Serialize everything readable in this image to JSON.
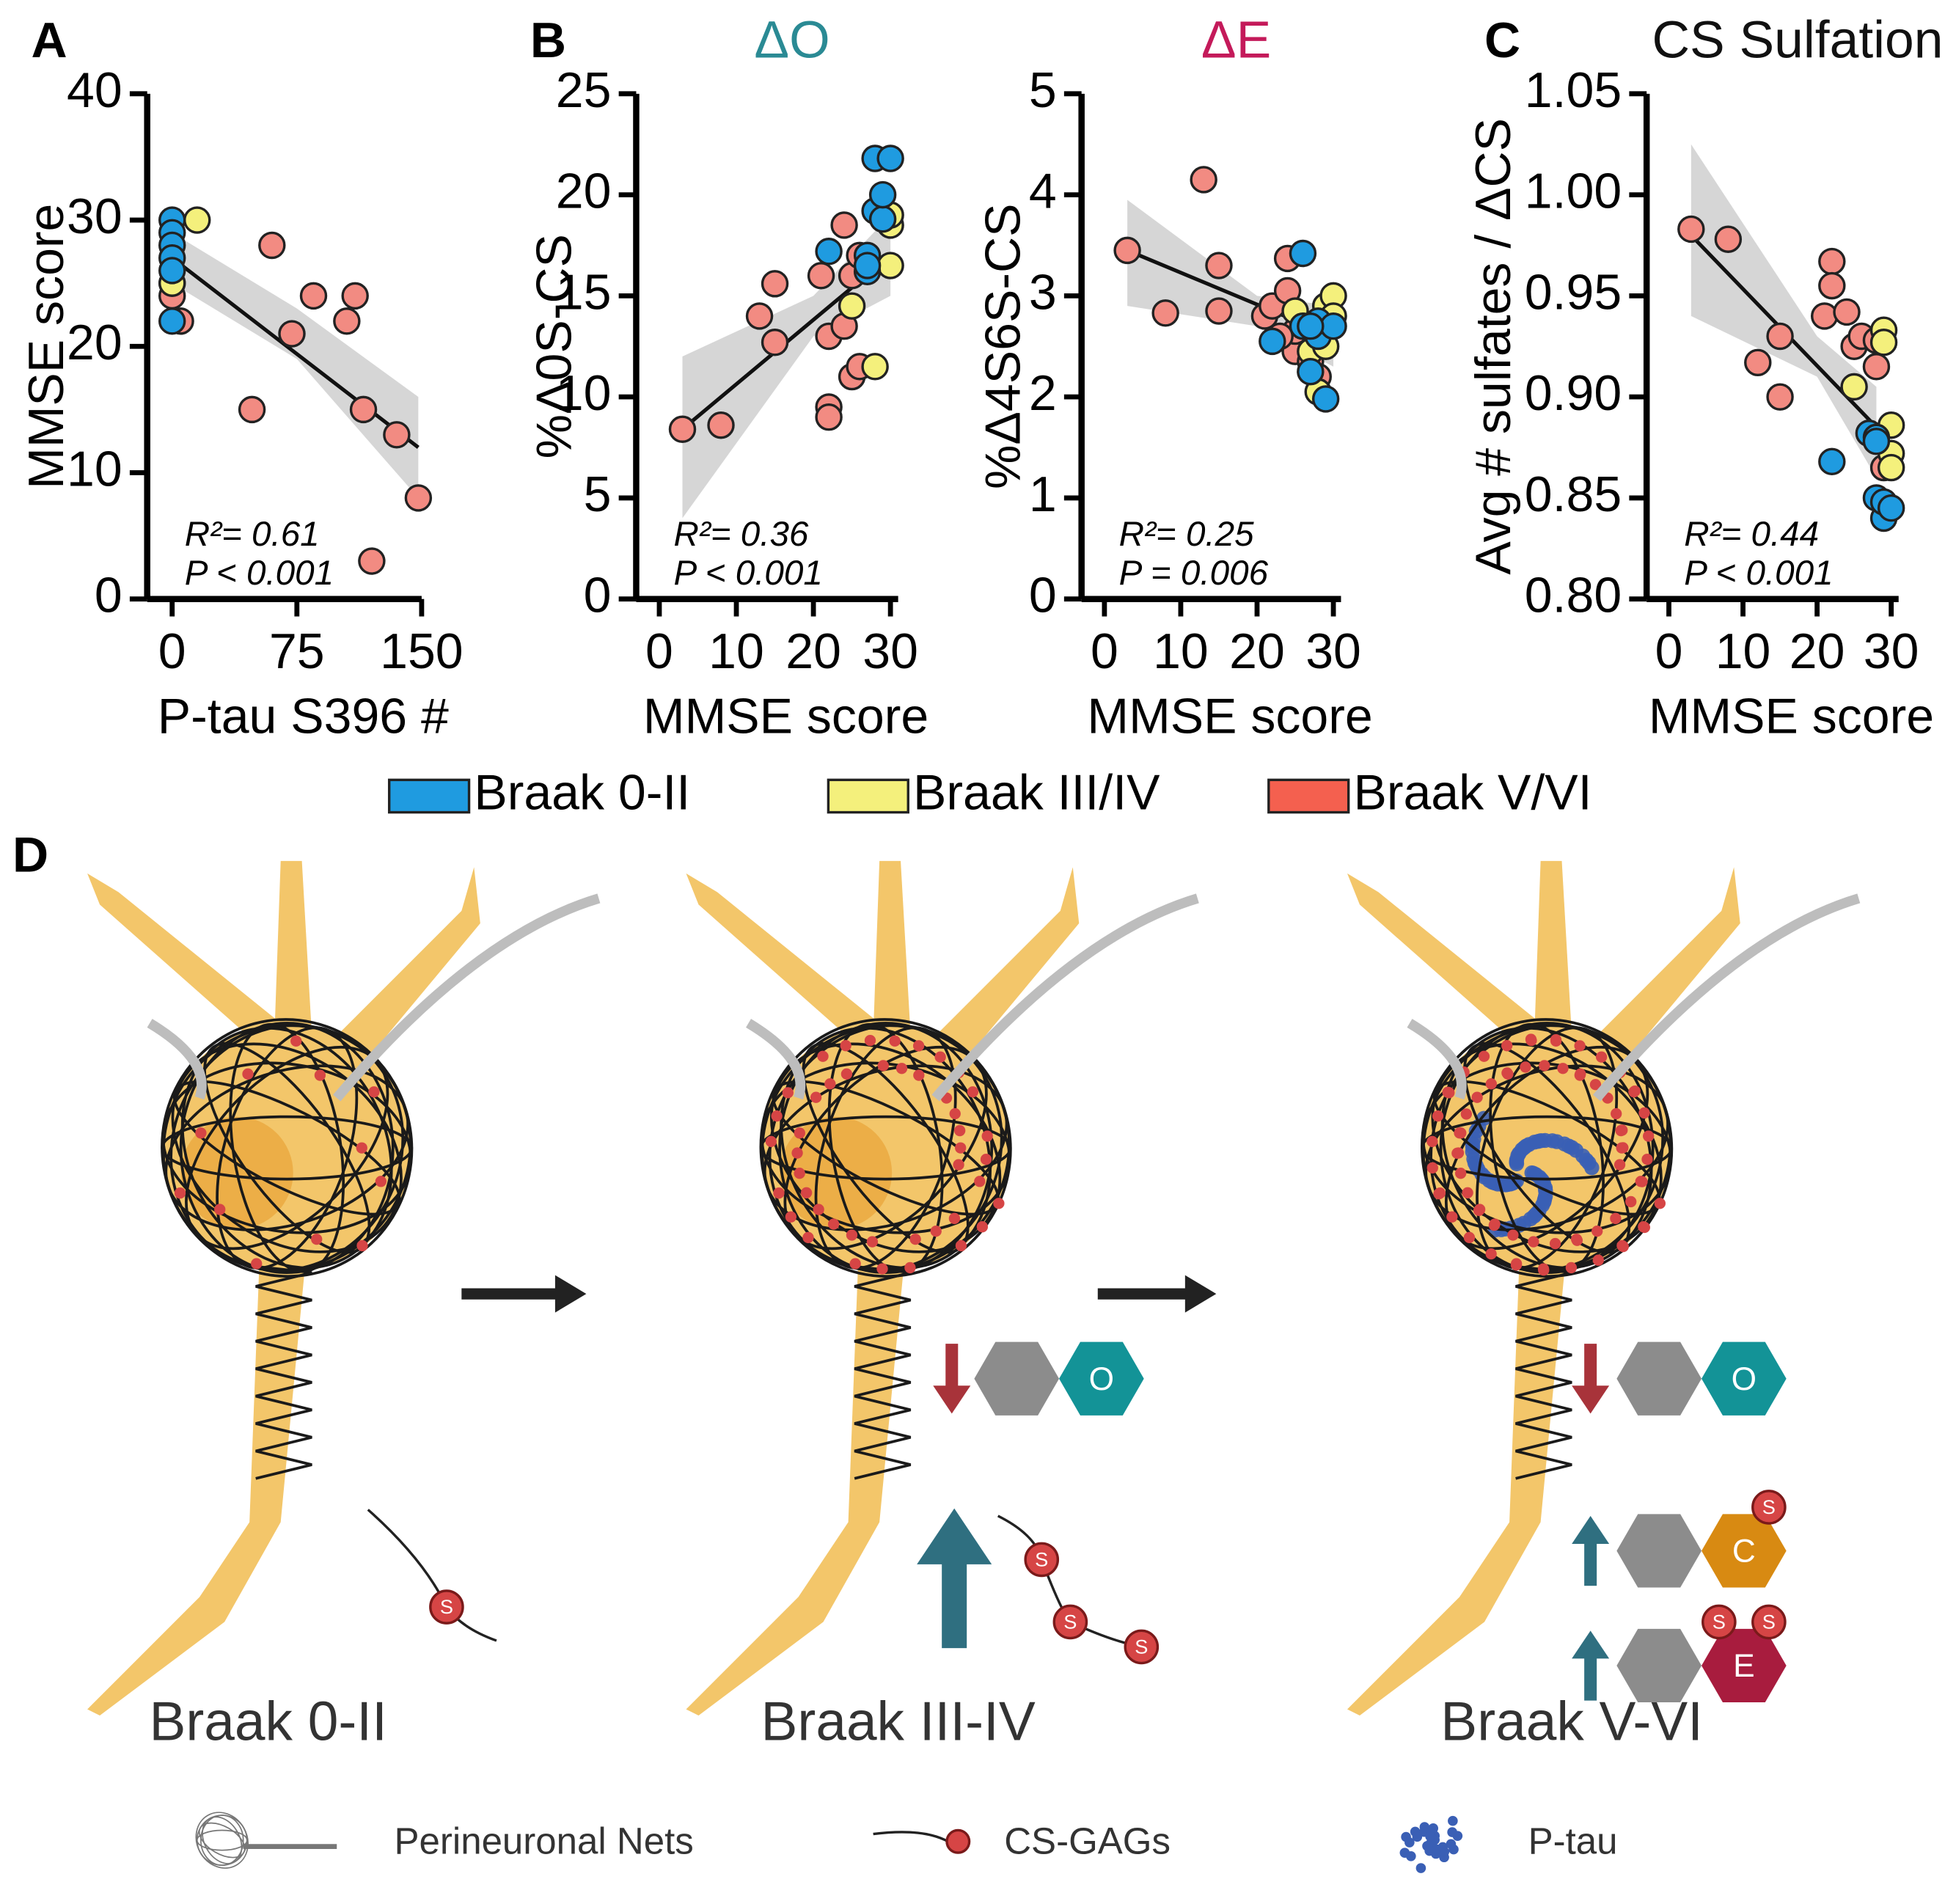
{
  "legend": [
    {
      "name": "Braak 0-II",
      "color": "#1f9be0"
    },
    {
      "name": "Braak III/IV",
      "color": "#f4f07c"
    },
    {
      "name": "Braak V/VI",
      "color": "#f4604f"
    }
  ],
  "chart_data": [
    {
      "type": "scatter",
      "panel_label": "A",
      "title": null,
      "xlabel": "P-tau S396 #",
      "ylabel": "MMSE score",
      "xlim": [
        -15,
        150
      ],
      "ylim": [
        0,
        40
      ],
      "xticks": [
        0,
        75,
        150
      ],
      "yticks": [
        0,
        10,
        20,
        30,
        40
      ],
      "series": [
        {
          "color": "#1f9be0",
          "x": [
            0,
            0,
            0,
            0,
            0,
            0
          ],
          "values": [
            30,
            29,
            28,
            27,
            26,
            22
          ]
        },
        {
          "color": "#f4f07c",
          "x": [
            15,
            0
          ],
          "values": [
            30,
            25
          ]
        },
        {
          "color": "#f28b82",
          "x": [
            0,
            0,
            5,
            60,
            85,
            110,
            105,
            72,
            48,
            115,
            135,
            148,
            120
          ],
          "values": [
            24,
            25,
            22,
            28,
            24,
            24,
            22,
            21,
            15,
            15,
            13,
            8,
            3
          ]
        }
      ],
      "fit": {
        "x": [
          0,
          148
        ],
        "y": [
          27,
          12
        ]
      },
      "band": {
        "x": [
          0,
          75,
          148
        ],
        "lower": [
          25,
          19,
          8
        ],
        "upper": [
          29,
          23,
          16
        ]
      },
      "annotations": [
        "R²= 0.61",
        "P < 0.001"
      ]
    },
    {
      "type": "scatter",
      "panel_label": "B",
      "title": "ΔO",
      "title_color": "#2a8a94",
      "xlabel": "MMSE score",
      "ylabel": "%Δ0S-CS",
      "xlim": [
        -3,
        31
      ],
      "ylim": [
        0,
        25
      ],
      "xticks": [
        0,
        10,
        20,
        30
      ],
      "yticks": [
        0,
        5,
        10,
        15,
        20,
        25
      ],
      "series": [
        {
          "color": "#1f9be0",
          "x": [
            22,
            27,
            27,
            28,
            28,
            30,
            29,
            27,
            29
          ],
          "values": [
            17.2,
            16.2,
            17,
            19.2,
            21.8,
            21.8,
            18.8,
            16.5,
            20
          ]
        },
        {
          "color": "#f4f07c",
          "x": [
            25,
            28,
            30,
            30,
            30
          ],
          "values": [
            14.5,
            11.5,
            18.5,
            16.5,
            19
          ]
        },
        {
          "color": "#f28b82",
          "x": [
            3,
            8,
            13,
            15,
            15,
            22,
            22,
            22,
            24,
            24,
            25,
            26,
            25,
            26,
            21
          ],
          "values": [
            8.4,
            8.6,
            14,
            15.6,
            12.7,
            13,
            9.5,
            9,
            13.5,
            18.5,
            11,
            11.5,
            16,
            17,
            16
          ]
        }
      ],
      "fit": {
        "x": [
          3,
          30
        ],
        "y": [
          8.4,
          17
        ]
      },
      "band": {
        "x": [
          3,
          20,
          30
        ],
        "lower": [
          4,
          13,
          15
        ],
        "upper": [
          12,
          15,
          19
        ]
      },
      "annotations": [
        "R²= 0.36",
        "P < 0.001"
      ]
    },
    {
      "type": "scatter",
      "panel_label": null,
      "title": "ΔE",
      "title_color": "#c41a5a",
      "xlabel": "MMSE score",
      "ylabel": "%Δ4S6S-CS",
      "xlim": [
        -3,
        31
      ],
      "ylim": [
        0,
        5
      ],
      "xticks": [
        0,
        10,
        20,
        30
      ],
      "yticks": [
        0,
        1,
        2,
        3,
        4,
        5
      ],
      "series": [
        {
          "color": "#1f9be0",
          "x": [
            22,
            26,
            26,
            27,
            28,
            28,
            29,
            30,
            27
          ],
          "values": [
            2.55,
            3.42,
            2.7,
            2.25,
            2.6,
            2.75,
            1.98,
            2.7,
            2.7
          ]
        },
        {
          "color": "#f4f07c",
          "x": [
            25,
            27,
            28,
            29,
            30,
            30,
            29
          ],
          "values": [
            2.85,
            2.45,
            2.05,
            2.9,
            3,
            2.8,
            2.5
          ]
        },
        {
          "color": "#f28b82",
          "x": [
            3,
            8,
            13,
            15,
            15,
            21,
            22,
            24,
            24,
            25,
            25,
            27,
            28,
            23
          ],
          "values": [
            3.45,
            2.83,
            4.15,
            3.3,
            2.85,
            2.8,
            2.9,
            3.37,
            3.05,
            2.45,
            2.65,
            2.35,
            2.2,
            2.6
          ]
        }
      ],
      "fit": {
        "x": [
          3,
          30
        ],
        "y": [
          3.45,
          2.6
        ]
      },
      "band": {
        "x": [
          3,
          20,
          30
        ],
        "lower": [
          2.9,
          2.7,
          2.3
        ],
        "upper": [
          3.95,
          3.0,
          2.9
        ]
      },
      "annotations": [
        "R²= 0.25",
        "P = 0.006"
      ]
    },
    {
      "type": "scatter",
      "panel_label": "C",
      "title": "CS Sulfation",
      "title_color": "#111111",
      "xlabel": "MMSE score",
      "ylabel": "Avg # sulfates / ΔCS",
      "xlim": [
        -3,
        31
      ],
      "ylim": [
        0.8,
        1.05
      ],
      "xticks": [
        0,
        10,
        20,
        30
      ],
      "yticks": [
        {
          "value": 0.8,
          "label": "0.80"
        },
        0.85,
        {
          "value": 0.9,
          "label": "0.90"
        },
        0.95,
        {
          "value": 1.0,
          "label": "1.00"
        },
        1.05
      ],
      "series": [
        {
          "color": "#1f9be0",
          "x": [
            22,
            27,
            28,
            28,
            28,
            29,
            29,
            30
          ],
          "values": [
            0.868,
            0.882,
            0.88,
            0.878,
            0.85,
            0.84,
            0.848,
            0.845
          ]
        },
        {
          "color": "#f4f07c",
          "x": [
            25,
            29,
            29,
            30,
            30,
            30
          ],
          "values": [
            0.905,
            0.933,
            0.927,
            0.886,
            0.872,
            0.865
          ]
        },
        {
          "color": "#f28b82",
          "x": [
            3,
            8,
            12,
            15,
            15,
            22,
            22,
            21,
            24,
            25,
            26,
            28,
            28,
            29
          ],
          "values": [
            0.983,
            0.978,
            0.917,
            0.93,
            0.9,
            0.967,
            0.955,
            0.94,
            0.942,
            0.925,
            0.93,
            0.928,
            0.915,
            0.865
          ]
        }
      ],
      "fit": {
        "x": [
          3,
          28
        ],
        "y": [
          0.98,
          0.885
        ]
      },
      "band": {
        "x": [
          3,
          20,
          28
        ],
        "lower": [
          0.94,
          0.91,
          0.86
        ],
        "upper": [
          1.025,
          0.93,
          0.905
        ]
      },
      "annotations": [
        "R²= 0.44",
        "P < 0.001"
      ]
    }
  ],
  "diagram": {
    "panel_label": "D",
    "stages": [
      "Braak 0-II",
      "Braak III-IV",
      "Braak V-VI"
    ],
    "hexagon_labels": {
      "o": "O",
      "c": "C",
      "e": "E"
    },
    "sulfate_label": "S",
    "legend": [
      "Perineuronal Nets",
      "CS-GAGs",
      "P-tau"
    ]
  }
}
